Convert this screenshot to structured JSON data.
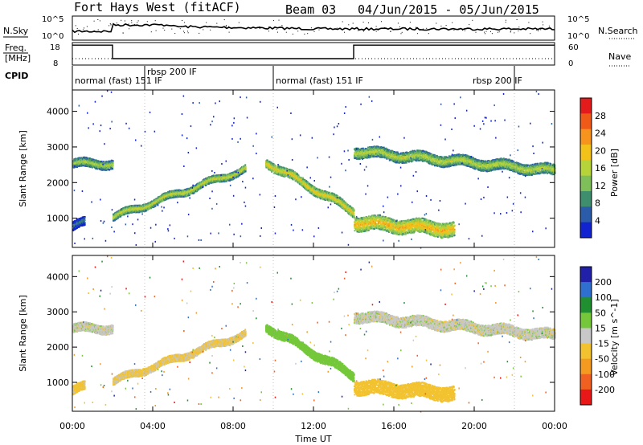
{
  "header": {
    "station": "Fort Hays West (fitACF)",
    "beam": "Beam 03",
    "dates": "04/Jun/2015 - 05/Jun/2015"
  },
  "noise_panel": {
    "left_label": "N.Sky",
    "right_label": "N.Search",
    "left_ticks": [
      "10^5",
      "10^0"
    ],
    "right_ticks": [
      "10^5",
      "10^0"
    ]
  },
  "freq_panel": {
    "left_label_1": "Freq.",
    "left_label_2": "[MHz]",
    "right_label": "Nave",
    "left_ticks": [
      "18",
      "8"
    ],
    "right_ticks": [
      "60",
      "0"
    ]
  },
  "cpid": {
    "label": "CPID",
    "segments": [
      {
        "text": "normal (fast) 151 IF",
        "start": 0.0
      },
      {
        "text": "rbsp 200 IF",
        "start": 3.6
      },
      {
        "text": "normal (fast) 151 IF",
        "start": 10.0
      },
      {
        "text": "rbsp 200 IF",
        "start": 19.8
      }
    ],
    "boundaries": [
      3.6,
      10.0,
      22.0
    ]
  },
  "power_panel": {
    "ylabel": "Slant Range [km]",
    "cbar_label": "Power [dB]",
    "cbar_ticks": [
      "28",
      "24",
      "20",
      "16",
      "12",
      "8",
      "4"
    ],
    "cbar_colors": [
      "#e41b1b",
      "#f05a18",
      "#f7941d",
      "#f2c21a",
      "#b6d33a",
      "#7fbf5a",
      "#3f8f6f",
      "#2a5caa",
      "#1224d0"
    ]
  },
  "velocity_panel": {
    "ylabel": "Slant Range [km]",
    "cbar_label": "Velocity [m s^-1]",
    "cbar_ticks": [
      "200",
      "100",
      "50",
      "15",
      "-15",
      "-50",
      "-100",
      "-200"
    ],
    "cbar_colors": [
      "#2020a8",
      "#2f6fd0",
      "#1f8f2f",
      "#74c83a",
      "#c8c8c8",
      "#f2c230",
      "#f59a20",
      "#f06020",
      "#e81818"
    ]
  },
  "xaxis": {
    "label": "Time UT",
    "ticks": [
      "00:00",
      "04:00",
      "08:00",
      "12:00",
      "16:00",
      "20:00",
      "00:00"
    ]
  },
  "chart_data": {
    "type": "heatmap",
    "title": "Fort Hays West (fitACF)  Beam 03  04/Jun/2015 - 05/Jun/2015",
    "xlabel": "Time UT",
    "ylabel": "Slant Range [km]",
    "xlim_hours": [
      0,
      24
    ],
    "ylim_km": [
      180,
      4600
    ],
    "y_ticks_km": [
      1000,
      2000,
      3000,
      4000
    ],
    "freq_mhz": [
      {
        "t0": 0.0,
        "t1": 2.0,
        "value": 17.5
      },
      {
        "t0": 2.0,
        "t1": 14.0,
        "value": 10.5
      },
      {
        "t0": 14.0,
        "t1": 24.0,
        "value": 17.5
      }
    ],
    "echo_bands": [
      {
        "name": "early",
        "t": [
          0.0,
          2.0
        ],
        "range_km": [
          2550,
          2550
        ],
        "width_km": 250,
        "power_db": 16,
        "velocity": 0
      },
      {
        "name": "low-early",
        "t": [
          0.0,
          0.6
        ],
        "range_km": [
          800,
          900
        ],
        "width_km": 250,
        "power_db": 8,
        "velocity": -30
      },
      {
        "name": "rise",
        "t": [
          2.0,
          8.6
        ],
        "range_km": [
          1050,
          2400
        ],
        "width_km": 200,
        "power_db": 18,
        "velocity": -20
      },
      {
        "name": "descending",
        "t": [
          9.6,
          14.0
        ],
        "range_km": [
          2600,
          1200
        ],
        "width_km": 250,
        "power_db": 20,
        "velocity": 40
      },
      {
        "name": "late-arc",
        "t": [
          14.0,
          24.0
        ],
        "range_km": [
          2900,
          2350
        ],
        "width_km": 300,
        "power_db": 17,
        "velocity": 0
      },
      {
        "name": "late-low",
        "t": [
          14.0,
          19.0
        ],
        "range_km": [
          900,
          700
        ],
        "width_km": 400,
        "power_db": 22,
        "velocity": -40
      }
    ]
  }
}
